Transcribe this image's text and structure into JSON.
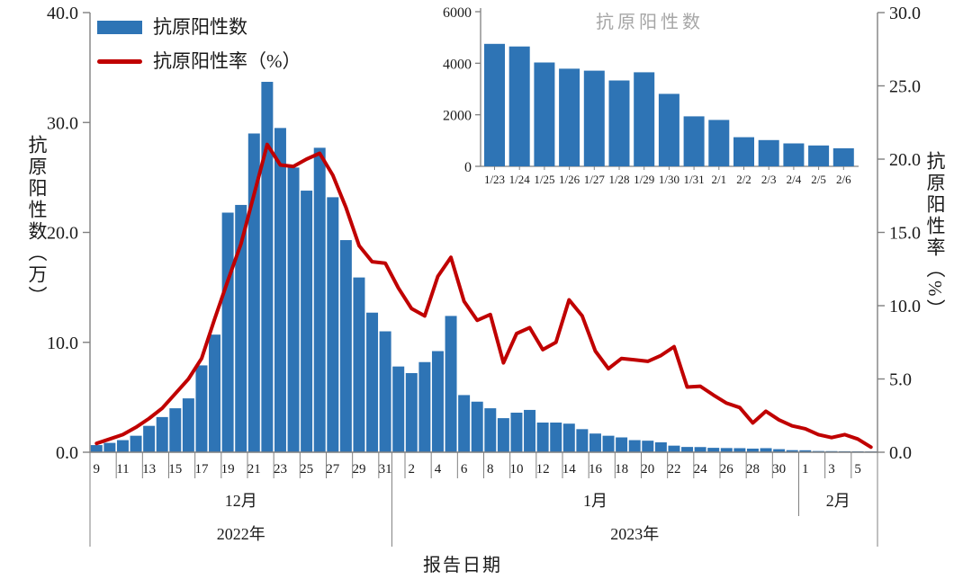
{
  "accent_colors": {
    "bar_blue": "#2E74B5",
    "line_red": "#C00000",
    "axis_gray": "#808080",
    "inset_title_gray": "#A6A6A6"
  },
  "legend": {
    "bar_label": "抗原阳性数",
    "line_label": "抗原阳性率（%）"
  },
  "left_axis_title": "抗原阳性数（万）",
  "right_axis_title": "抗原阳性率（%）",
  "x_axis_title": "报告日期",
  "inset_title": "抗原阳性数",
  "chart_data": [
    {
      "type": "bar",
      "name": "main-combo-chart-bars",
      "title": "",
      "xlabel": "报告日期",
      "ylabel": "抗原阳性数（万）",
      "ylim": [
        0,
        40
      ],
      "left_tick_labels": [
        "0.0",
        "10.0",
        "20.0",
        "30.0",
        "40.0"
      ],
      "left_ticks": [
        0,
        10,
        20,
        30,
        40
      ],
      "categories": [
        "12/9",
        "12/10",
        "12/11",
        "12/12",
        "12/13",
        "12/14",
        "12/15",
        "12/16",
        "12/17",
        "12/18",
        "12/19",
        "12/20",
        "12/21",
        "12/22",
        "12/23",
        "12/24",
        "12/25",
        "12/26",
        "12/27",
        "12/28",
        "12/29",
        "12/30",
        "12/31",
        "1/1",
        "1/2",
        "1/3",
        "1/4",
        "1/5",
        "1/6",
        "1/7",
        "1/8",
        "1/9",
        "1/10",
        "1/11",
        "1/12",
        "1/13",
        "1/14",
        "1/15",
        "1/16",
        "1/17",
        "1/18",
        "1/19",
        "1/20",
        "1/21",
        "1/22",
        "1/23",
        "1/24",
        "1/25",
        "1/26",
        "1/27",
        "1/28",
        "1/29",
        "1/30",
        "1/31",
        "2/1",
        "2/2",
        "2/3",
        "2/4",
        "2/5",
        "2/6"
      ],
      "x_tick_labels": [
        "9",
        "11",
        "13",
        "15",
        "17",
        "19",
        "21",
        "23",
        "25",
        "27",
        "29",
        "31",
        "2",
        "4",
        "6",
        "8",
        "10",
        "12",
        "14",
        "16",
        "18",
        "20",
        "22",
        "24",
        "26",
        "28",
        "30",
        "1",
        "3",
        "5"
      ],
      "month_groups": [
        {
          "label": "12月",
          "from_bar": 0,
          "to_bar": 23
        },
        {
          "label": "1月",
          "from_bar": 23,
          "to_bar": 54
        },
        {
          "label": "2月",
          "from_bar": 54,
          "to_bar": 60
        }
      ],
      "year_groups": [
        {
          "label": "2022年",
          "from_bar": 0,
          "to_bar": 23
        },
        {
          "label": "2023年",
          "from_bar": 23,
          "to_bar": 60
        }
      ],
      "series": [
        {
          "name": "抗原阳性数",
          "unit": "万",
          "values": [
            0.65,
            0.85,
            1.1,
            1.5,
            2.4,
            3.2,
            4.0,
            4.9,
            7.9,
            10.7,
            21.8,
            22.5,
            29.0,
            33.7,
            29.5,
            25.9,
            23.8,
            27.7,
            23.2,
            19.3,
            15.9,
            12.7,
            11.0,
            7.8,
            7.2,
            8.2,
            9.2,
            12.4,
            5.2,
            4.6,
            4.0,
            3.1,
            3.6,
            3.85,
            2.7,
            2.7,
            2.6,
            2.1,
            1.7,
            1.5,
            1.35,
            1.1,
            1.05,
            0.9,
            0.6,
            0.48,
            0.47,
            0.4,
            0.38,
            0.37,
            0.33,
            0.37,
            0.28,
            0.19,
            0.18,
            0.11,
            0.1,
            0.09,
            0.08,
            0.07
          ]
        }
      ],
      "legend_position": "top-left",
      "grid": false
    },
    {
      "type": "line",
      "name": "main-combo-chart-rate-line",
      "ylabel": "抗原阳性率（%）",
      "ylim": [
        0,
        30
      ],
      "right_tick_labels": [
        "0.0",
        "5.0",
        "10.0",
        "15.0",
        "20.0",
        "25.0",
        "30.0"
      ],
      "right_ticks": [
        0,
        5,
        10,
        15,
        20,
        25,
        30
      ],
      "series": [
        {
          "name": "抗原阳性率（%）",
          "values": [
            0.6,
            0.9,
            1.2,
            1.7,
            2.3,
            3.0,
            4.0,
            5.0,
            6.4,
            9.1,
            11.7,
            14.2,
            17.6,
            21.0,
            19.6,
            19.5,
            20.0,
            20.4,
            18.9,
            16.7,
            14.1,
            13.0,
            12.9,
            11.2,
            9.8,
            9.3,
            12.0,
            13.3,
            10.3,
            9.0,
            9.4,
            6.1,
            8.1,
            8.5,
            7.0,
            7.5,
            10.4,
            9.3,
            6.9,
            5.7,
            6.4,
            6.3,
            6.2,
            6.6,
            7.2,
            4.45,
            4.5,
            3.9,
            3.35,
            3.05,
            2.0,
            2.8,
            2.2,
            1.8,
            1.6,
            1.2,
            1.0,
            1.2,
            0.9,
            0.35
          ]
        }
      ],
      "grid": false
    },
    {
      "type": "bar",
      "name": "inset-chart",
      "title": "抗原阳性数",
      "ylim": [
        0,
        6000
      ],
      "y_tick_labels": [
        "0",
        "2000",
        "4000",
        "6000"
      ],
      "y_ticks": [
        0,
        2000,
        4000,
        6000
      ],
      "categories": [
        "1/23",
        "1/24",
        "1/25",
        "1/26",
        "1/27",
        "1/28",
        "1/29",
        "1/30",
        "1/31",
        "2/1",
        "2/2",
        "2/3",
        "2/4",
        "2/5",
        "2/6"
      ],
      "values": [
        4750,
        4650,
        4030,
        3790,
        3710,
        3330,
        3650,
        2810,
        1940,
        1800,
        1130,
        1020,
        890,
        810,
        700
      ],
      "legend_position": "none",
      "grid": false
    }
  ]
}
